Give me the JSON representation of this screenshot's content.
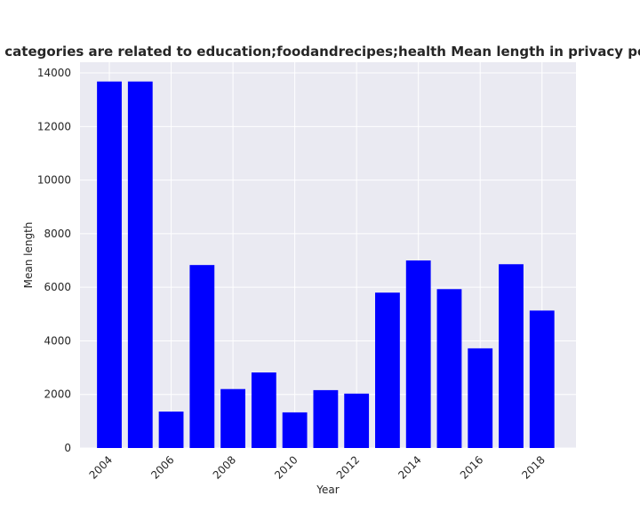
{
  "chart_data": {
    "type": "bar",
    "title": "Pages when categories are related to education;foodandrecipes;health Mean length in privacy policies by year",
    "xlabel": "Year",
    "ylabel": "Mean length",
    "x": [
      2004,
      2005,
      2006,
      2007,
      2008,
      2009,
      2010,
      2011,
      2012,
      2013,
      2014,
      2015,
      2016,
      2017,
      2018
    ],
    "values": [
      13680,
      13680,
      1360,
      6830,
      2200,
      2820,
      1330,
      2160,
      2030,
      5800,
      7000,
      5930,
      3720,
      6860,
      5130
    ],
    "xticks": [
      "2004",
      "2006",
      "2008",
      "2010",
      "2012",
      "2014",
      "2016",
      "2018"
    ],
    "yticks": [
      "0",
      "2000",
      "4000",
      "6000",
      "8000",
      "10000",
      "12000",
      "14000"
    ],
    "ylim": [
      0,
      14400
    ],
    "xlim": [
      2003.05,
      2019.1
    ],
    "grid": true,
    "bar_color": "#0000ff",
    "background_color": "#eaeaf2"
  }
}
